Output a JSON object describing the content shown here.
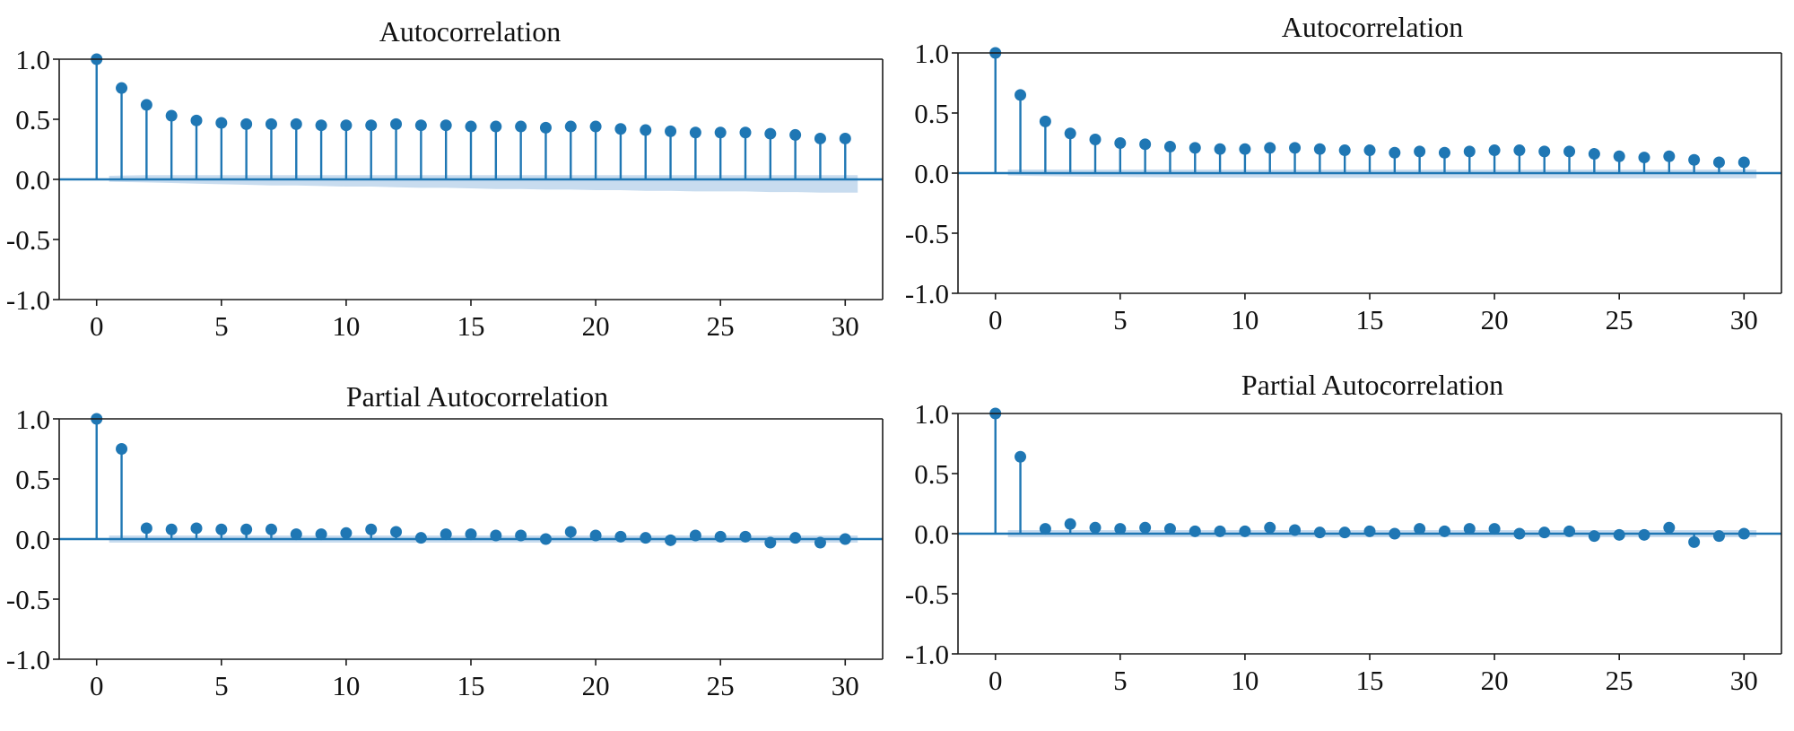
{
  "colors": {
    "stem": "#1f77b4",
    "marker": "#1f77b4",
    "band": "#b6d0e9",
    "axis": "#1a1a1a",
    "baseline": "#1f77b4"
  },
  "chart_data": [
    {
      "type": "stem",
      "title": "Autocorrelation",
      "xlabel": "",
      "ylabel": "",
      "xlim": [
        -1.5,
        31.5
      ],
      "ylim": [
        -1.0,
        1.0
      ],
      "xticks": [
        0,
        5,
        10,
        15,
        20,
        25,
        30
      ],
      "yticks": [
        1.0,
        0.5,
        0.0,
        -0.5,
        -1.0
      ],
      "xtick_labels": [
        "0",
        "5",
        "10",
        "15",
        "20",
        "25",
        "30"
      ],
      "ytick_labels": [
        "1.0",
        "0.5",
        "0.0",
        "-0.5",
        "-1.0"
      ],
      "lags": [
        0,
        1,
        2,
        3,
        4,
        5,
        6,
        7,
        8,
        9,
        10,
        11,
        12,
        13,
        14,
        15,
        16,
        17,
        18,
        19,
        20,
        21,
        22,
        23,
        24,
        25,
        26,
        27,
        28,
        29,
        30
      ],
      "values": [
        1.0,
        0.76,
        0.62,
        0.53,
        0.49,
        0.47,
        0.46,
        0.46,
        0.46,
        0.45,
        0.45,
        0.45,
        0.46,
        0.45,
        0.45,
        0.44,
        0.44,
        0.44,
        0.43,
        0.44,
        0.44,
        0.42,
        0.41,
        0.4,
        0.39,
        0.39,
        0.39,
        0.38,
        0.37,
        0.34,
        0.34
      ],
      "confint_upper": [
        0.0,
        0.03,
        0.035,
        0.035,
        0.035,
        0.035,
        0.035,
        0.035,
        0.035,
        0.035,
        0.035,
        0.035,
        0.035,
        0.035,
        0.035,
        0.035,
        0.035,
        0.035,
        0.035,
        0.035,
        0.035,
        0.035,
        0.035,
        0.035,
        0.035,
        0.035,
        0.035,
        0.035,
        0.035,
        0.035,
        0.035
      ],
      "confint_lower": [
        0.0,
        -0.02,
        -0.025,
        -0.03,
        -0.035,
        -0.04,
        -0.045,
        -0.05,
        -0.05,
        -0.055,
        -0.06,
        -0.06,
        -0.065,
        -0.07,
        -0.07,
        -0.075,
        -0.08,
        -0.08,
        -0.085,
        -0.085,
        -0.09,
        -0.09,
        -0.095,
        -0.095,
        -0.1,
        -0.1,
        -0.1,
        -0.105,
        -0.105,
        -0.11,
        -0.11
      ]
    },
    {
      "type": "stem",
      "title": "Autocorrelation",
      "xlabel": "",
      "ylabel": "",
      "xlim": [
        -1.5,
        31.5
      ],
      "ylim": [
        -1.0,
        1.0
      ],
      "xticks": [
        0,
        5,
        10,
        15,
        20,
        25,
        30
      ],
      "yticks": [
        1.0,
        0.5,
        0.0,
        -0.5,
        -1.0
      ],
      "xtick_labels": [
        "0",
        "5",
        "10",
        "15",
        "20",
        "25",
        "30"
      ],
      "ytick_labels": [
        "1.0",
        "0.5",
        "0.0",
        "-0.5",
        "-1.0"
      ],
      "lags": [
        0,
        1,
        2,
        3,
        4,
        5,
        6,
        7,
        8,
        9,
        10,
        11,
        12,
        13,
        14,
        15,
        16,
        17,
        18,
        19,
        20,
        21,
        22,
        23,
        24,
        25,
        26,
        27,
        28,
        29,
        30
      ],
      "values": [
        1.0,
        0.65,
        0.43,
        0.33,
        0.28,
        0.25,
        0.24,
        0.22,
        0.21,
        0.2,
        0.2,
        0.21,
        0.21,
        0.2,
        0.19,
        0.19,
        0.17,
        0.18,
        0.17,
        0.18,
        0.19,
        0.19,
        0.18,
        0.18,
        0.16,
        0.14,
        0.13,
        0.14,
        0.11,
        0.09,
        0.09
      ],
      "confint_upper": [
        0.0,
        0.03,
        0.03,
        0.03,
        0.03,
        0.03,
        0.03,
        0.03,
        0.03,
        0.03,
        0.03,
        0.03,
        0.03,
        0.03,
        0.03,
        0.03,
        0.03,
        0.03,
        0.03,
        0.03,
        0.03,
        0.03,
        0.03,
        0.03,
        0.03,
        0.03,
        0.03,
        0.03,
        0.03,
        0.03,
        0.03
      ],
      "confint_lower": [
        0.0,
        -0.02,
        -0.025,
        -0.028,
        -0.03,
        -0.032,
        -0.034,
        -0.035,
        -0.036,
        -0.037,
        -0.038,
        -0.038,
        -0.039,
        -0.04,
        -0.04,
        -0.04,
        -0.04,
        -0.041,
        -0.041,
        -0.041,
        -0.042,
        -0.042,
        -0.042,
        -0.042,
        -0.043,
        -0.043,
        -0.043,
        -0.043,
        -0.043,
        -0.043,
        -0.043
      ]
    },
    {
      "type": "stem",
      "title": "Partial Autocorrelation",
      "xlabel": "",
      "ylabel": "",
      "xlim": [
        -1.5,
        31.5
      ],
      "ylim": [
        -1.0,
        1.0
      ],
      "xticks": [
        0,
        5,
        10,
        15,
        20,
        25,
        30
      ],
      "yticks": [
        1.0,
        0.5,
        0.0,
        -0.5,
        -1.0
      ],
      "xtick_labels": [
        "0",
        "5",
        "10",
        "15",
        "20",
        "25",
        "30"
      ],
      "ytick_labels": [
        "1.0",
        "0.5",
        "0.0",
        "-0.5",
        "-1.0"
      ],
      "lags": [
        0,
        1,
        2,
        3,
        4,
        5,
        6,
        7,
        8,
        9,
        10,
        11,
        12,
        13,
        14,
        15,
        16,
        17,
        18,
        19,
        20,
        21,
        22,
        23,
        24,
        25,
        26,
        27,
        28,
        29,
        30
      ],
      "values": [
        1.0,
        0.75,
        0.09,
        0.08,
        0.09,
        0.08,
        0.08,
        0.08,
        0.04,
        0.04,
        0.05,
        0.08,
        0.06,
        0.01,
        0.04,
        0.04,
        0.03,
        0.03,
        0.0,
        0.06,
        0.03,
        0.02,
        0.01,
        -0.01,
        0.03,
        0.02,
        0.02,
        -0.03,
        0.01,
        -0.03,
        0.0
      ],
      "confint_upper": [
        0.0,
        0.03,
        0.03,
        0.03,
        0.03,
        0.03,
        0.03,
        0.03,
        0.03,
        0.03,
        0.03,
        0.03,
        0.03,
        0.03,
        0.03,
        0.03,
        0.03,
        0.03,
        0.03,
        0.03,
        0.03,
        0.03,
        0.03,
        0.03,
        0.03,
        0.03,
        0.03,
        0.03,
        0.03,
        0.03,
        0.03
      ],
      "confint_lower": [
        0.0,
        -0.03,
        -0.03,
        -0.03,
        -0.03,
        -0.03,
        -0.03,
        -0.03,
        -0.03,
        -0.03,
        -0.03,
        -0.03,
        -0.03,
        -0.03,
        -0.03,
        -0.03,
        -0.03,
        -0.03,
        -0.03,
        -0.03,
        -0.03,
        -0.03,
        -0.03,
        -0.03,
        -0.03,
        -0.03,
        -0.03,
        -0.03,
        -0.03,
        -0.03,
        -0.03
      ]
    },
    {
      "type": "stem",
      "title": "Partial Autocorrelation",
      "xlabel": "",
      "ylabel": "",
      "xlim": [
        -1.5,
        31.5
      ],
      "ylim": [
        -1.0,
        1.0
      ],
      "xticks": [
        0,
        5,
        10,
        15,
        20,
        25,
        30
      ],
      "yticks": [
        1.0,
        0.5,
        0.0,
        -0.5,
        -1.0
      ],
      "xtick_labels": [
        "0",
        "5",
        "10",
        "15",
        "20",
        "25",
        "30"
      ],
      "ytick_labels": [
        "1.0",
        "0.5",
        "0.0",
        "-0.5",
        "-1.0"
      ],
      "lags": [
        0,
        1,
        2,
        3,
        4,
        5,
        6,
        7,
        8,
        9,
        10,
        11,
        12,
        13,
        14,
        15,
        16,
        17,
        18,
        19,
        20,
        21,
        22,
        23,
        24,
        25,
        26,
        27,
        28,
        29,
        30
      ],
      "values": [
        1.0,
        0.64,
        0.04,
        0.08,
        0.05,
        0.04,
        0.05,
        0.04,
        0.02,
        0.02,
        0.02,
        0.05,
        0.03,
        0.01,
        0.01,
        0.02,
        0.0,
        0.04,
        0.02,
        0.04,
        0.04,
        0.0,
        0.01,
        0.02,
        -0.02,
        -0.01,
        -0.01,
        0.05,
        -0.07,
        -0.02,
        0.0
      ],
      "confint_upper": [
        0.0,
        0.03,
        0.03,
        0.03,
        0.03,
        0.03,
        0.03,
        0.03,
        0.03,
        0.03,
        0.03,
        0.03,
        0.03,
        0.03,
        0.03,
        0.03,
        0.03,
        0.03,
        0.03,
        0.03,
        0.03,
        0.03,
        0.03,
        0.03,
        0.03,
        0.03,
        0.03,
        0.03,
        0.03,
        0.03,
        0.03
      ],
      "confint_lower": [
        0.0,
        -0.03,
        -0.03,
        -0.03,
        -0.03,
        -0.03,
        -0.03,
        -0.03,
        -0.03,
        -0.03,
        -0.03,
        -0.03,
        -0.03,
        -0.03,
        -0.03,
        -0.03,
        -0.03,
        -0.03,
        -0.03,
        -0.03,
        -0.03,
        -0.03,
        -0.03,
        -0.03,
        -0.03,
        -0.03,
        -0.03,
        -0.03,
        -0.03,
        -0.03,
        -0.03
      ]
    }
  ]
}
